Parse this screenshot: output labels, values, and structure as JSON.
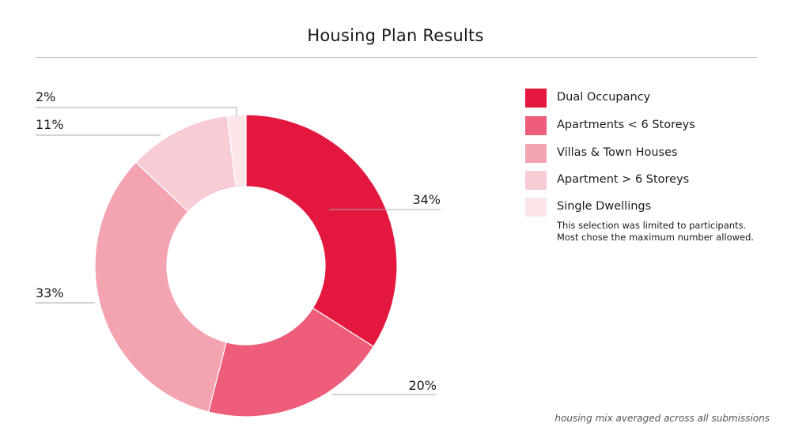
{
  "header": {
    "title": "Housing Plan Results"
  },
  "legend": {
    "note_line1": "This selection was limited to participants.",
    "note_line2": "Most chose the maximum number allowed."
  },
  "footnote": "housing mix averaged across all submissions",
  "chart_data": {
    "type": "pie",
    "donut": true,
    "title": "Housing Plan Results",
    "start_angle_deg": 0,
    "direction": "clockwise",
    "legend_placement": "right",
    "series": [
      {
        "name": "Dual Occupancy",
        "value": 34,
        "label": "34%",
        "color": "#e4173f"
      },
      {
        "name": "Apartments < 6 Storeys",
        "value": 20,
        "label": "20%",
        "color": "#ee5e7b"
      },
      {
        "name": "Villas & Town Houses",
        "value": 33,
        "label": "33%",
        "color": "#f4a3b1"
      },
      {
        "name": "Apartment > 6 Storeys",
        "value": 11,
        "label": "11%",
        "color": "#f8ccd5"
      },
      {
        "name": "Single Dwellings",
        "value": 2,
        "label": "2%",
        "color": "#fbe5e9"
      }
    ]
  }
}
